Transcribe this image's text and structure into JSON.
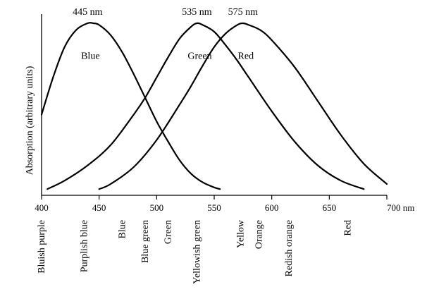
{
  "chart_data": {
    "type": "line",
    "title": "",
    "xlabel": "",
    "ylabel": "Absorption (arbitrary units)",
    "x_unit": "nm",
    "xlim": [
      400,
      700
    ],
    "xticks": [
      400,
      450,
      500,
      550,
      600,
      650,
      700
    ],
    "grid": false,
    "series": [
      {
        "name": "Blue",
        "peak_label": "445 nm",
        "x": [
          400,
          410,
          420,
          430,
          440,
          445,
          450,
          460,
          470,
          480,
          490,
          500,
          510,
          520,
          530,
          540,
          550,
          555
        ],
        "values": [
          0.46,
          0.68,
          0.86,
          0.96,
          1.0,
          1.0,
          0.99,
          0.93,
          0.83,
          0.7,
          0.56,
          0.42,
          0.3,
          0.19,
          0.11,
          0.06,
          0.03,
          0.02
        ]
      },
      {
        "name": "Green",
        "peak_label": "535 nm",
        "x": [
          405,
          420,
          440,
          460,
          480,
          490,
          500,
          510,
          520,
          530,
          535,
          540,
          550,
          560,
          570,
          580,
          600,
          620,
          640,
          660,
          680
        ],
        "values": [
          0.02,
          0.07,
          0.16,
          0.28,
          0.46,
          0.56,
          0.68,
          0.8,
          0.91,
          0.98,
          1.0,
          0.99,
          0.95,
          0.87,
          0.78,
          0.68,
          0.48,
          0.3,
          0.16,
          0.07,
          0.02
        ]
      },
      {
        "name": "Red",
        "peak_label": "575 nm",
        "x": [
          450,
          460,
          480,
          500,
          520,
          530,
          540,
          550,
          560,
          570,
          575,
          580,
          590,
          600,
          620,
          640,
          660,
          680,
          700
        ],
        "values": [
          0.02,
          0.05,
          0.15,
          0.31,
          0.52,
          0.63,
          0.75,
          0.86,
          0.94,
          0.99,
          1.0,
          0.99,
          0.96,
          0.9,
          0.74,
          0.54,
          0.34,
          0.17,
          0.05
        ]
      }
    ],
    "color_bands": [
      {
        "label": "Bluish purple",
        "x": 400
      },
      {
        "label": "Purplish blue",
        "x": 437
      },
      {
        "label": "Blue",
        "x": 470
      },
      {
        "label": "Blue green",
        "x": 490
      },
      {
        "label": "Green",
        "x": 510
      },
      {
        "label": "Yellowish green",
        "x": 535
      },
      {
        "label": "Yellow",
        "x": 573
      },
      {
        "label": "Orange",
        "x": 589
      },
      {
        "label": "Redish orange",
        "x": 615
      },
      {
        "label": "Red",
        "x": 666
      }
    ]
  }
}
